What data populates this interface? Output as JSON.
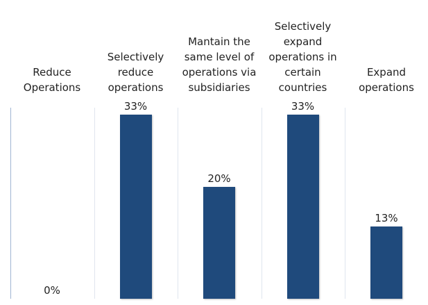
{
  "chart_data": {
    "type": "bar",
    "categories": [
      "Reduce Operations",
      "Selectively reduce operations",
      "Mantain the same level of operations via subsidiaries",
      "Selectively expand operations in certain countries",
      "Expand operations"
    ],
    "values": [
      0,
      33,
      20,
      33,
      13
    ],
    "value_labels": [
      "0%",
      "33%",
      "20%",
      "33%",
      "13%"
    ],
    "color": "#1f4a7c"
  }
}
